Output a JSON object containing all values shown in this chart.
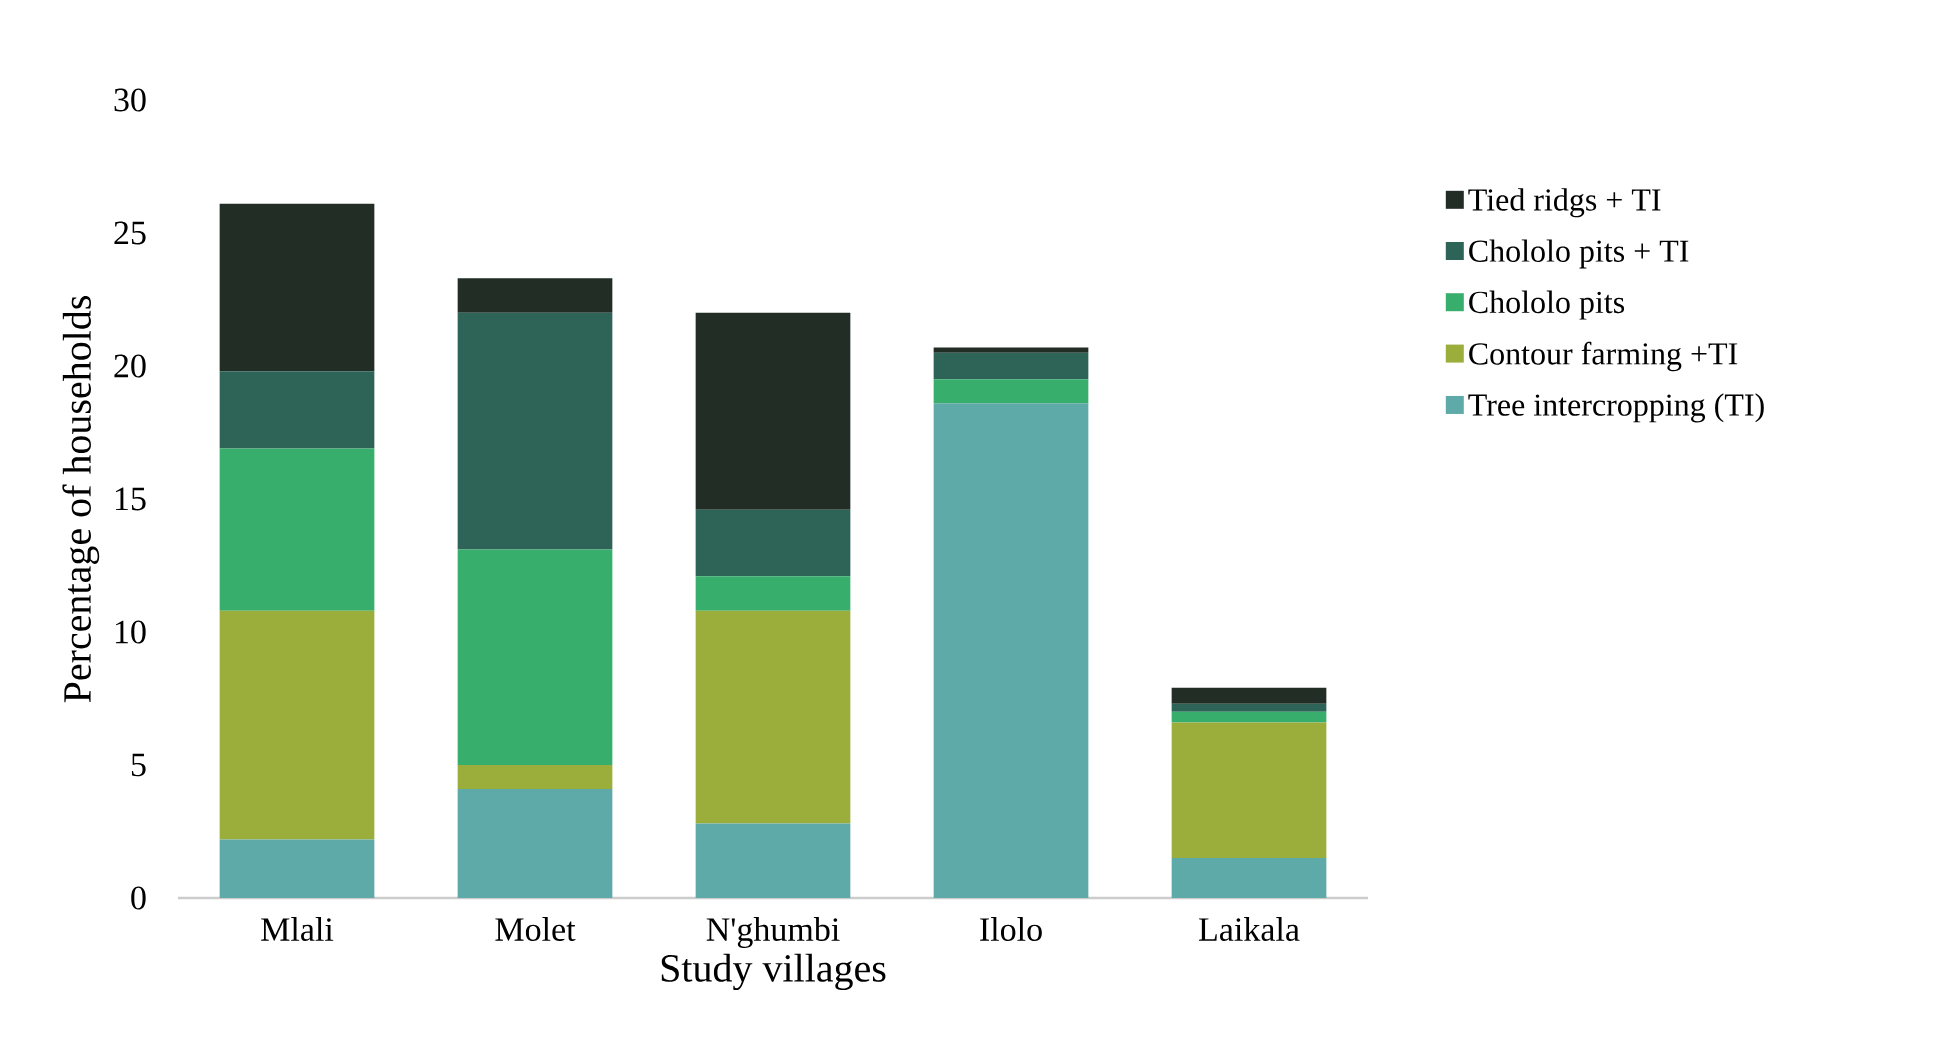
{
  "chart_data": {
    "type": "bar",
    "stacked": true,
    "xlabel": "Study villages",
    "ylabel": "Percentage of households",
    "categories": [
      "Mlali",
      "Molet",
      "N'ghumbi",
      "Ilolo",
      "Laikala"
    ],
    "ylim": [
      0,
      30
    ],
    "yticks": [
      0,
      5,
      10,
      15,
      20,
      25,
      30
    ],
    "legend": "right",
    "series": [
      {
        "name": "Tree intercropping (TI)",
        "color": "#5eaaa8",
        "values": [
          2.2,
          4.1,
          2.8,
          18.6,
          1.5
        ]
      },
      {
        "name": "Contour farming +TI",
        "color": "#9bae3c",
        "values": [
          8.6,
          0.9,
          8.0,
          0,
          5.1
        ]
      },
      {
        "name": "Chololo pits",
        "color": "#37ae6b",
        "values": [
          6.1,
          8.1,
          1.3,
          0.9,
          0.4
        ]
      },
      {
        "name": "Chololo pits + TI",
        "color": "#2e6358",
        "values": [
          2.9,
          8.9,
          2.5,
          1.0,
          0.3
        ]
      },
      {
        "name": "Tied ridgs + TI",
        "color": "#222d26",
        "values": [
          6.3,
          1.3,
          7.4,
          0.2,
          0.6
        ]
      }
    ]
  }
}
